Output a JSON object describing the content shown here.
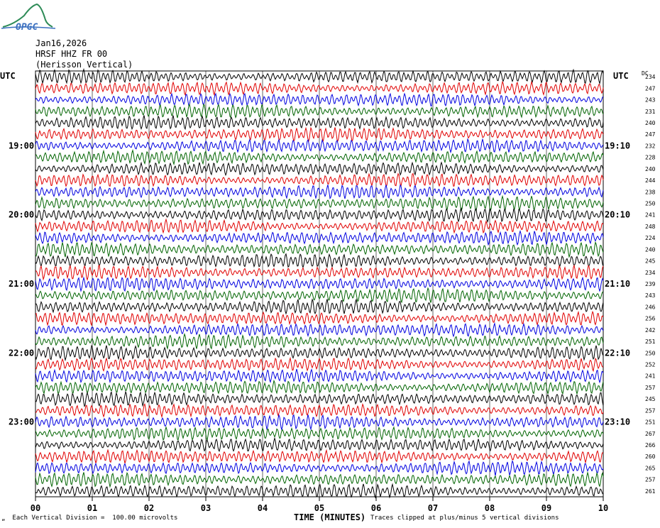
{
  "logo": {
    "text": "OPGC"
  },
  "header": {
    "date": "Jan16,2026",
    "station": "HRSF HHZ FR 00",
    "location": "(Herisson Vertical)"
  },
  "utc_left": "UTC",
  "utc_right": "UTC",
  "dc_header": "DC",
  "footer": {
    "mark": "„",
    "scale_note": " Each Vertical Division =  100.00 microvolts",
    "xlabel": "TIME (MINUTES)",
    "clip_note": "Traces clipped at plus/minus 5 vertical divisions"
  },
  "colors": {
    "trace": [
      "#000000",
      "#e00000",
      "#0000e0",
      "#006400"
    ],
    "grid": "#000000"
  },
  "chart_data": {
    "type": "line",
    "title": "",
    "xlabel": "TIME (MINUTES)",
    "ylabel": "",
    "x_ticks": [
      "00",
      "01",
      "02",
      "03",
      "04",
      "05",
      "06",
      "07",
      "08",
      "09",
      "10"
    ],
    "xlim": [
      0,
      10
    ],
    "grid": true,
    "trace_interval_minutes": 10,
    "left_hour_labels": [
      {
        "row": 6,
        "label": "19:00"
      },
      {
        "row": 12,
        "label": "20:00"
      },
      {
        "row": 18,
        "label": "21:00"
      },
      {
        "row": 24,
        "label": "22:00"
      },
      {
        "row": 30,
        "label": "23:00"
      }
    ],
    "right_hour_labels": [
      {
        "row": 6,
        "label": "19:10"
      },
      {
        "row": 12,
        "label": "20:10"
      },
      {
        "row": 18,
        "label": "21:10"
      },
      {
        "row": 24,
        "label": "22:10"
      },
      {
        "row": 30,
        "label": "23:10"
      }
    ],
    "dc_values": [
      "234",
      "247",
      "243",
      "231",
      "240",
      "247",
      "232",
      "228",
      "240",
      "244",
      "238",
      "250",
      "241",
      "248",
      "224",
      "240",
      "245",
      "234",
      "239",
      "243",
      "246",
      "256",
      "242",
      "251",
      "250",
      "252",
      "241",
      "257",
      "245",
      "257",
      "251",
      "267",
      "266",
      "260",
      "265",
      "257",
      "261"
    ]
  }
}
